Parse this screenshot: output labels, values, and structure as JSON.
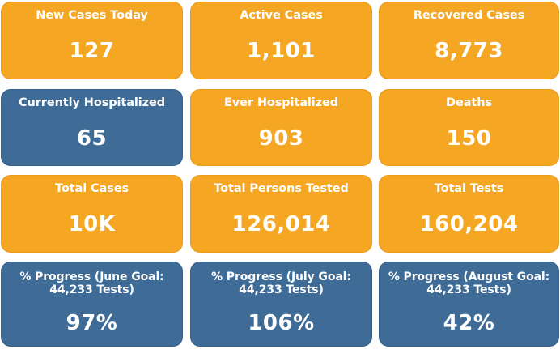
{
  "cards": [
    {
      "label": "New Cases Today",
      "value": "127",
      "color": "#f5a623"
    },
    {
      "label": "Active Cases",
      "value": "1,101",
      "color": "#f5a623"
    },
    {
      "label": "Recovered Cases",
      "value": "8,773",
      "color": "#f5a623"
    },
    {
      "label": "Currently Hospitalized",
      "value": "65",
      "color": "#3f6c97"
    },
    {
      "label": "Ever Hospitalized",
      "value": "903",
      "color": "#f5a623"
    },
    {
      "label": "Deaths",
      "value": "150",
      "color": "#f5a623"
    },
    {
      "label": "Total Cases",
      "value": "10K",
      "color": "#f5a623"
    },
    {
      "label": "Total Persons Tested",
      "value": "126,014",
      "color": "#f5a623"
    },
    {
      "label": "Total Tests",
      "value": "160,204",
      "color": "#f5a623"
    },
    {
      "label_line1": "% Progress (June Goal:",
      "label_line2": "44,233 Tests)",
      "value": "97%",
      "color": "#3f6c97"
    },
    {
      "label_line1": "% Progress (July Goal:",
      "label_line2": "44,233 Tests)",
      "value": "106%",
      "color": "#3f6c97"
    },
    {
      "label_line1": "% Progress (August Goal:",
      "label_line2": "44,233 Tests)",
      "value": "42%",
      "color": "#3f6c97"
    }
  ]
}
